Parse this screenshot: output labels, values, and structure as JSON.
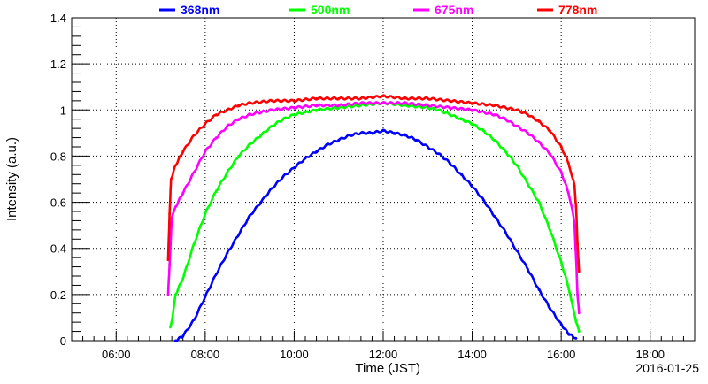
{
  "chart_data": {
    "type": "scatter",
    "xlabel": "Time (JST)",
    "ylabel": "Intensity (a.u.)",
    "date": "2016-01-25",
    "xlim": [
      "05:00",
      "19:00"
    ],
    "ylim": [
      0,
      1.4
    ],
    "x_ticks": [
      "06:00",
      "08:00",
      "10:00",
      "12:00",
      "14:00",
      "16:00",
      "18:00"
    ],
    "y_ticks": [
      "0",
      "0.2",
      "0.4",
      "0.6",
      "0.8",
      "1",
      "1.2",
      "1.4"
    ],
    "grid": true,
    "legend_placement": "top",
    "series": [
      {
        "name": "368nm",
        "color": "#0000ff",
        "points": [
          [
            "07:20",
            0.0
          ],
          [
            "07:30",
            0.02
          ],
          [
            "07:45",
            0.09
          ],
          [
            "08:00",
            0.19
          ],
          [
            "08:15",
            0.29
          ],
          [
            "08:30",
            0.38
          ],
          [
            "08:45",
            0.46
          ],
          [
            "09:00",
            0.54
          ],
          [
            "09:15",
            0.6
          ],
          [
            "09:30",
            0.66
          ],
          [
            "09:45",
            0.71
          ],
          [
            "10:00",
            0.75
          ],
          [
            "10:15",
            0.79
          ],
          [
            "10:30",
            0.82
          ],
          [
            "10:45",
            0.85
          ],
          [
            "11:00",
            0.87
          ],
          [
            "11:15",
            0.89
          ],
          [
            "11:30",
            0.9
          ],
          [
            "11:45",
            0.9
          ],
          [
            "12:00",
            0.91
          ],
          [
            "12:15",
            0.9
          ],
          [
            "12:30",
            0.89
          ],
          [
            "12:45",
            0.87
          ],
          [
            "13:00",
            0.84
          ],
          [
            "13:15",
            0.81
          ],
          [
            "13:30",
            0.77
          ],
          [
            "13:45",
            0.72
          ],
          [
            "14:00",
            0.67
          ],
          [
            "14:15",
            0.61
          ],
          [
            "14:30",
            0.54
          ],
          [
            "14:45",
            0.47
          ],
          [
            "15:00",
            0.39
          ],
          [
            "15:15",
            0.31
          ],
          [
            "15:30",
            0.22
          ],
          [
            "15:45",
            0.14
          ],
          [
            "16:00",
            0.07
          ],
          [
            "16:10",
            0.03
          ],
          [
            "16:20",
            0.01
          ]
        ]
      },
      {
        "name": "500nm",
        "color": "#00ff00",
        "points": [
          [
            "07:13",
            0.06
          ],
          [
            "07:16",
            0.1
          ],
          [
            "07:20",
            0.2
          ],
          [
            "07:30",
            0.27
          ],
          [
            "07:45",
            0.42
          ],
          [
            "08:00",
            0.55
          ],
          [
            "08:15",
            0.65
          ],
          [
            "08:30",
            0.73
          ],
          [
            "08:45",
            0.8
          ],
          [
            "09:00",
            0.85
          ],
          [
            "09:15",
            0.89
          ],
          [
            "09:30",
            0.93
          ],
          [
            "09:45",
            0.96
          ],
          [
            "10:00",
            0.98
          ],
          [
            "10:15",
            0.99
          ],
          [
            "10:30",
            1.0
          ],
          [
            "11:00",
            1.01
          ],
          [
            "11:30",
            1.02
          ],
          [
            "12:00",
            1.03
          ],
          [
            "12:30",
            1.02
          ],
          [
            "13:00",
            1.01
          ],
          [
            "13:15",
            1.0
          ],
          [
            "13:30",
            0.98
          ],
          [
            "13:45",
            0.96
          ],
          [
            "14:00",
            0.94
          ],
          [
            "14:15",
            0.91
          ],
          [
            "14:30",
            0.87
          ],
          [
            "14:45",
            0.82
          ],
          [
            "15:00",
            0.76
          ],
          [
            "15:15",
            0.68
          ],
          [
            "15:30",
            0.6
          ],
          [
            "15:45",
            0.48
          ],
          [
            "16:00",
            0.34
          ],
          [
            "16:10",
            0.23
          ],
          [
            "16:15",
            0.16
          ],
          [
            "16:20",
            0.08
          ],
          [
            "16:24",
            0.04
          ]
        ]
      },
      {
        "name": "675nm",
        "color": "#ff00ff",
        "points": [
          [
            "07:10",
            0.2
          ],
          [
            "07:12",
            0.33
          ],
          [
            "07:15",
            0.53
          ],
          [
            "07:20",
            0.58
          ],
          [
            "07:30",
            0.64
          ],
          [
            "07:45",
            0.73
          ],
          [
            "08:00",
            0.82
          ],
          [
            "08:15",
            0.88
          ],
          [
            "08:30",
            0.93
          ],
          [
            "08:45",
            0.96
          ],
          [
            "09:00",
            0.98
          ],
          [
            "09:30",
            1.0
          ],
          [
            "10:00",
            1.01
          ],
          [
            "10:30",
            1.02
          ],
          [
            "11:00",
            1.02
          ],
          [
            "11:30",
            1.03
          ],
          [
            "12:00",
            1.03
          ],
          [
            "12:30",
            1.03
          ],
          [
            "13:00",
            1.02
          ],
          [
            "13:30",
            1.01
          ],
          [
            "14:00",
            1.0
          ],
          [
            "14:30",
            0.98
          ],
          [
            "14:45",
            0.96
          ],
          [
            "15:00",
            0.93
          ],
          [
            "15:15",
            0.9
          ],
          [
            "15:30",
            0.86
          ],
          [
            "15:45",
            0.81
          ],
          [
            "16:00",
            0.73
          ],
          [
            "16:10",
            0.64
          ],
          [
            "16:15",
            0.57
          ],
          [
            "16:18",
            0.5
          ],
          [
            "16:20",
            0.36
          ],
          [
            "16:22",
            0.2
          ],
          [
            "16:24",
            0.12
          ]
        ]
      },
      {
        "name": "778nm",
        "color": "#ff0000",
        "points": [
          [
            "07:10",
            0.35
          ],
          [
            "07:12",
            0.55
          ],
          [
            "07:14",
            0.7
          ],
          [
            "07:20",
            0.76
          ],
          [
            "07:30",
            0.82
          ],
          [
            "07:45",
            0.89
          ],
          [
            "08:00",
            0.94
          ],
          [
            "08:15",
            0.98
          ],
          [
            "08:30",
            1.0
          ],
          [
            "08:45",
            1.02
          ],
          [
            "09:00",
            1.03
          ],
          [
            "09:30",
            1.04
          ],
          [
            "10:00",
            1.04
          ],
          [
            "10:30",
            1.05
          ],
          [
            "11:00",
            1.05
          ],
          [
            "11:30",
            1.05
          ],
          [
            "12:00",
            1.06
          ],
          [
            "12:30",
            1.05
          ],
          [
            "13:00",
            1.05
          ],
          [
            "13:30",
            1.04
          ],
          [
            "14:00",
            1.03
          ],
          [
            "14:30",
            1.02
          ],
          [
            "15:00",
            1.0
          ],
          [
            "15:15",
            0.98
          ],
          [
            "15:30",
            0.95
          ],
          [
            "15:45",
            0.91
          ],
          [
            "16:00",
            0.84
          ],
          [
            "16:10",
            0.77
          ],
          [
            "16:15",
            0.71
          ],
          [
            "16:18",
            0.67
          ],
          [
            "16:20",
            0.58
          ],
          [
            "16:22",
            0.42
          ],
          [
            "16:24",
            0.3
          ]
        ]
      }
    ]
  }
}
